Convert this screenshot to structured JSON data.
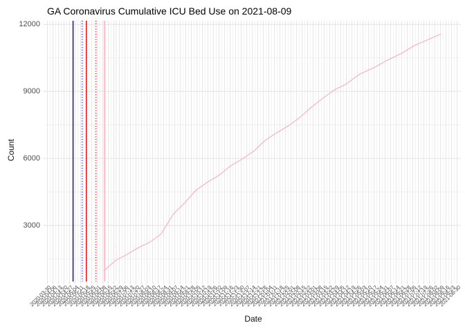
{
  "title": "GA Coronavirus Cumulative ICU Bed Use on 2021-08-09",
  "axes": {
    "x_label": "Date",
    "y_label": "Count",
    "y_tick_values": [
      12000,
      9000,
      6000,
      3000
    ]
  },
  "colors": {
    "background": "#ffffff",
    "grid_major": "#e4e4e4",
    "grid_minor": "#efefef",
    "axis_text": "#4d4d4d",
    "title_text": "#000000",
    "series_line": "#f7b3c2",
    "tick_mark": "#d8d8d8"
  },
  "chart_data": {
    "type": "line",
    "title": "GA Coronavirus Cumulative ICU Bed Use on 2021-08-09",
    "xlabel": "Date",
    "ylabel": "Count",
    "ylim": [
      490,
      12160
    ],
    "grid": "on",
    "legend": "none",
    "y_major_gridlines": [
      3000,
      6000,
      9000,
      12000
    ],
    "y_minor_gridlines": [
      1500,
      4500,
      7500,
      10500
    ],
    "x_tick_labels": [
      "2020-03-30",
      "2020-04-06",
      "2020-04-13",
      "2020-04-20",
      "2020-04-27",
      "2020-05-04",
      "2020-05-11",
      "2020-05-18",
      "2020-05-25",
      "2020-06-01",
      "2020-06-08",
      "2020-06-15",
      "2020-06-22",
      "2020-06-29",
      "2020-07-06",
      "2020-07-13",
      "2020-07-20",
      "2020-07-27",
      "2020-08-03",
      "2020-08-10",
      "2020-08-17",
      "2020-08-24",
      "2020-08-31",
      "2020-09-07",
      "2020-09-14",
      "2020-09-21",
      "2020-09-28",
      "2020-10-05",
      "2020-10-12",
      "2020-10-19",
      "2020-10-26",
      "2020-11-02",
      "2020-11-09",
      "2020-11-16",
      "2020-11-23",
      "2020-11-30",
      "2020-12-07",
      "2020-12-14",
      "2020-12-21",
      "2020-12-28",
      "2021-01-04",
      "2021-01-11",
      "2021-01-18",
      "2021-01-25",
      "2021-02-01",
      "2021-02-08",
      "2021-02-15",
      "2021-02-22",
      "2021-03-01",
      "2021-03-08",
      "2021-03-15",
      "2021-03-22",
      "2021-03-29",
      "2021-04-05",
      "2021-04-12",
      "2021-04-19",
      "2021-04-26",
      "2021-05-03",
      "2021-05-10",
      "2021-05-17",
      "2021-05-24",
      "2021-05-31",
      "2021-06-07",
      "2021-06-14",
      "2021-06-21",
      "2021-06-28",
      "2021-07-05",
      "2021-07-12",
      "2021-07-19",
      "2021-07-26",
      "2021-08-02",
      "2021-08-09",
      "2021-08-16",
      "2021-08-23",
      "2021-08-30"
    ],
    "vlines": [
      {
        "x_frac": 0.066,
        "color": "#1414be",
        "style": "solid",
        "width": 1.5
      },
      {
        "x_frac": 0.088,
        "color": "#2222dd",
        "style": "dotted",
        "width": 1.3
      },
      {
        "x_frac": 0.098,
        "color": "#e01010",
        "style": "solid",
        "width": 1.5
      },
      {
        "x_frac": 0.121,
        "color": "#c41414",
        "style": "dotted",
        "width": 1.3
      },
      {
        "x_frac": 0.142,
        "color": "#fbc0cd",
        "style": "solid",
        "width": 2.2
      },
      {
        "x_frac": 0.169,
        "color": "#fdd6de",
        "style": "dotted",
        "width": 1.5
      }
    ],
    "series": [
      {
        "name": "Cumulative ICU bed use",
        "color": "#f7b3c2",
        "points": [
          {
            "x_frac": 0.14,
            "count": 960,
            "date": "2020-06-09"
          },
          {
            "x_frac": 0.168,
            "count": 1430,
            "date": "2020-06-24"
          },
          {
            "x_frac": 0.195,
            "count": 1690,
            "date": "2020-07-08"
          },
          {
            "x_frac": 0.223,
            "count": 2000,
            "date": "2020-07-23"
          },
          {
            "x_frac": 0.252,
            "count": 2260,
            "date": "2020-08-07"
          },
          {
            "x_frac": 0.278,
            "count": 2620,
            "date": "2020-08-21"
          },
          {
            "x_frac": 0.307,
            "count": 3500,
            "date": "2020-09-04"
          },
          {
            "x_frac": 0.335,
            "count": 4010,
            "date": "2020-09-19"
          },
          {
            "x_frac": 0.362,
            "count": 4580,
            "date": "2020-10-03"
          },
          {
            "x_frac": 0.39,
            "count": 4940,
            "date": "2020-10-18"
          },
          {
            "x_frac": 0.418,
            "count": 5250,
            "date": "2020-11-02"
          },
          {
            "x_frac": 0.445,
            "count": 5660,
            "date": "2020-11-16"
          },
          {
            "x_frac": 0.473,
            "count": 5970,
            "date": "2020-12-01"
          },
          {
            "x_frac": 0.502,
            "count": 6330,
            "date": "2020-12-16"
          },
          {
            "x_frac": 0.528,
            "count": 6800,
            "date": "2020-12-30"
          },
          {
            "x_frac": 0.557,
            "count": 7150,
            "date": "2021-01-14"
          },
          {
            "x_frac": 0.585,
            "count": 7460,
            "date": "2021-01-29"
          },
          {
            "x_frac": 0.612,
            "count": 7830,
            "date": "2021-02-12"
          },
          {
            "x_frac": 0.64,
            "count": 8290,
            "date": "2021-02-26"
          },
          {
            "x_frac": 0.668,
            "count": 8700,
            "date": "2021-03-13"
          },
          {
            "x_frac": 0.695,
            "count": 9060,
            "date": "2021-03-27"
          },
          {
            "x_frac": 0.723,
            "count": 9320,
            "date": "2021-04-11"
          },
          {
            "x_frac": 0.757,
            "count": 9780,
            "date": "2021-04-29"
          },
          {
            "x_frac": 0.79,
            "count": 10050,
            "date": "2021-05-16"
          },
          {
            "x_frac": 0.823,
            "count": 10400,
            "date": "2021-06-03"
          },
          {
            "x_frac": 0.857,
            "count": 10700,
            "date": "2021-06-20"
          },
          {
            "x_frac": 0.89,
            "count": 11070,
            "date": "2021-07-08"
          },
          {
            "x_frac": 0.923,
            "count": 11330,
            "date": "2021-07-25"
          },
          {
            "x_frac": 0.952,
            "count": 11570,
            "date": "2021-08-09"
          }
        ]
      }
    ]
  }
}
